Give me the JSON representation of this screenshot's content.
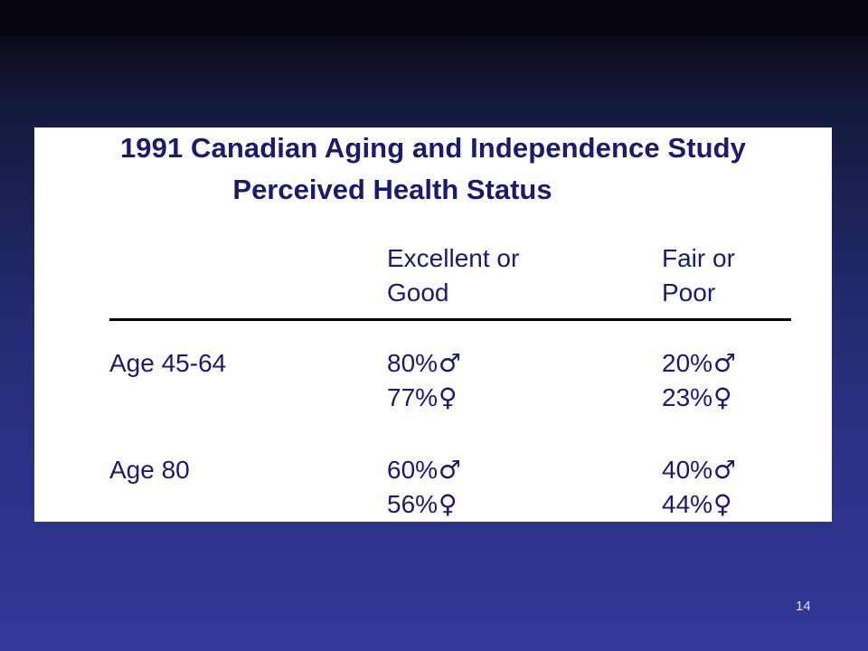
{
  "slide": {
    "title_line1": "1991 Canadian Aging and Independence Study",
    "title_line2": "Perceived Health Status",
    "page_number": "14"
  },
  "table": {
    "column_headers": [
      {
        "line1": "Excellent or",
        "line2": "Good"
      },
      {
        "line1": "Fair or",
        "line2": "Poor"
      }
    ],
    "rows": [
      {
        "label": "Age 45-64",
        "excellent_good": [
          {
            "value": "80%",
            "symbol": "♂"
          },
          {
            "value": "77%",
            "symbol": "♀"
          }
        ],
        "fair_poor": [
          {
            "value": "20%",
            "symbol": "♂"
          },
          {
            "value": "23%",
            "symbol": "♀"
          }
        ]
      },
      {
        "label": "Age 80",
        "excellent_good": [
          {
            "value": "60%",
            "symbol": "♂"
          },
          {
            "value": "56%",
            "symbol": "♀"
          }
        ],
        "fair_poor": [
          {
            "value": "40%",
            "symbol": "♂"
          },
          {
            "value": "44%",
            "symbol": "♀"
          }
        ]
      }
    ]
  },
  "colors": {
    "text": "#1a1a6e",
    "background_top": "#0b0b1a",
    "background_bottom": "#34399c",
    "panel": "#ffffff"
  }
}
